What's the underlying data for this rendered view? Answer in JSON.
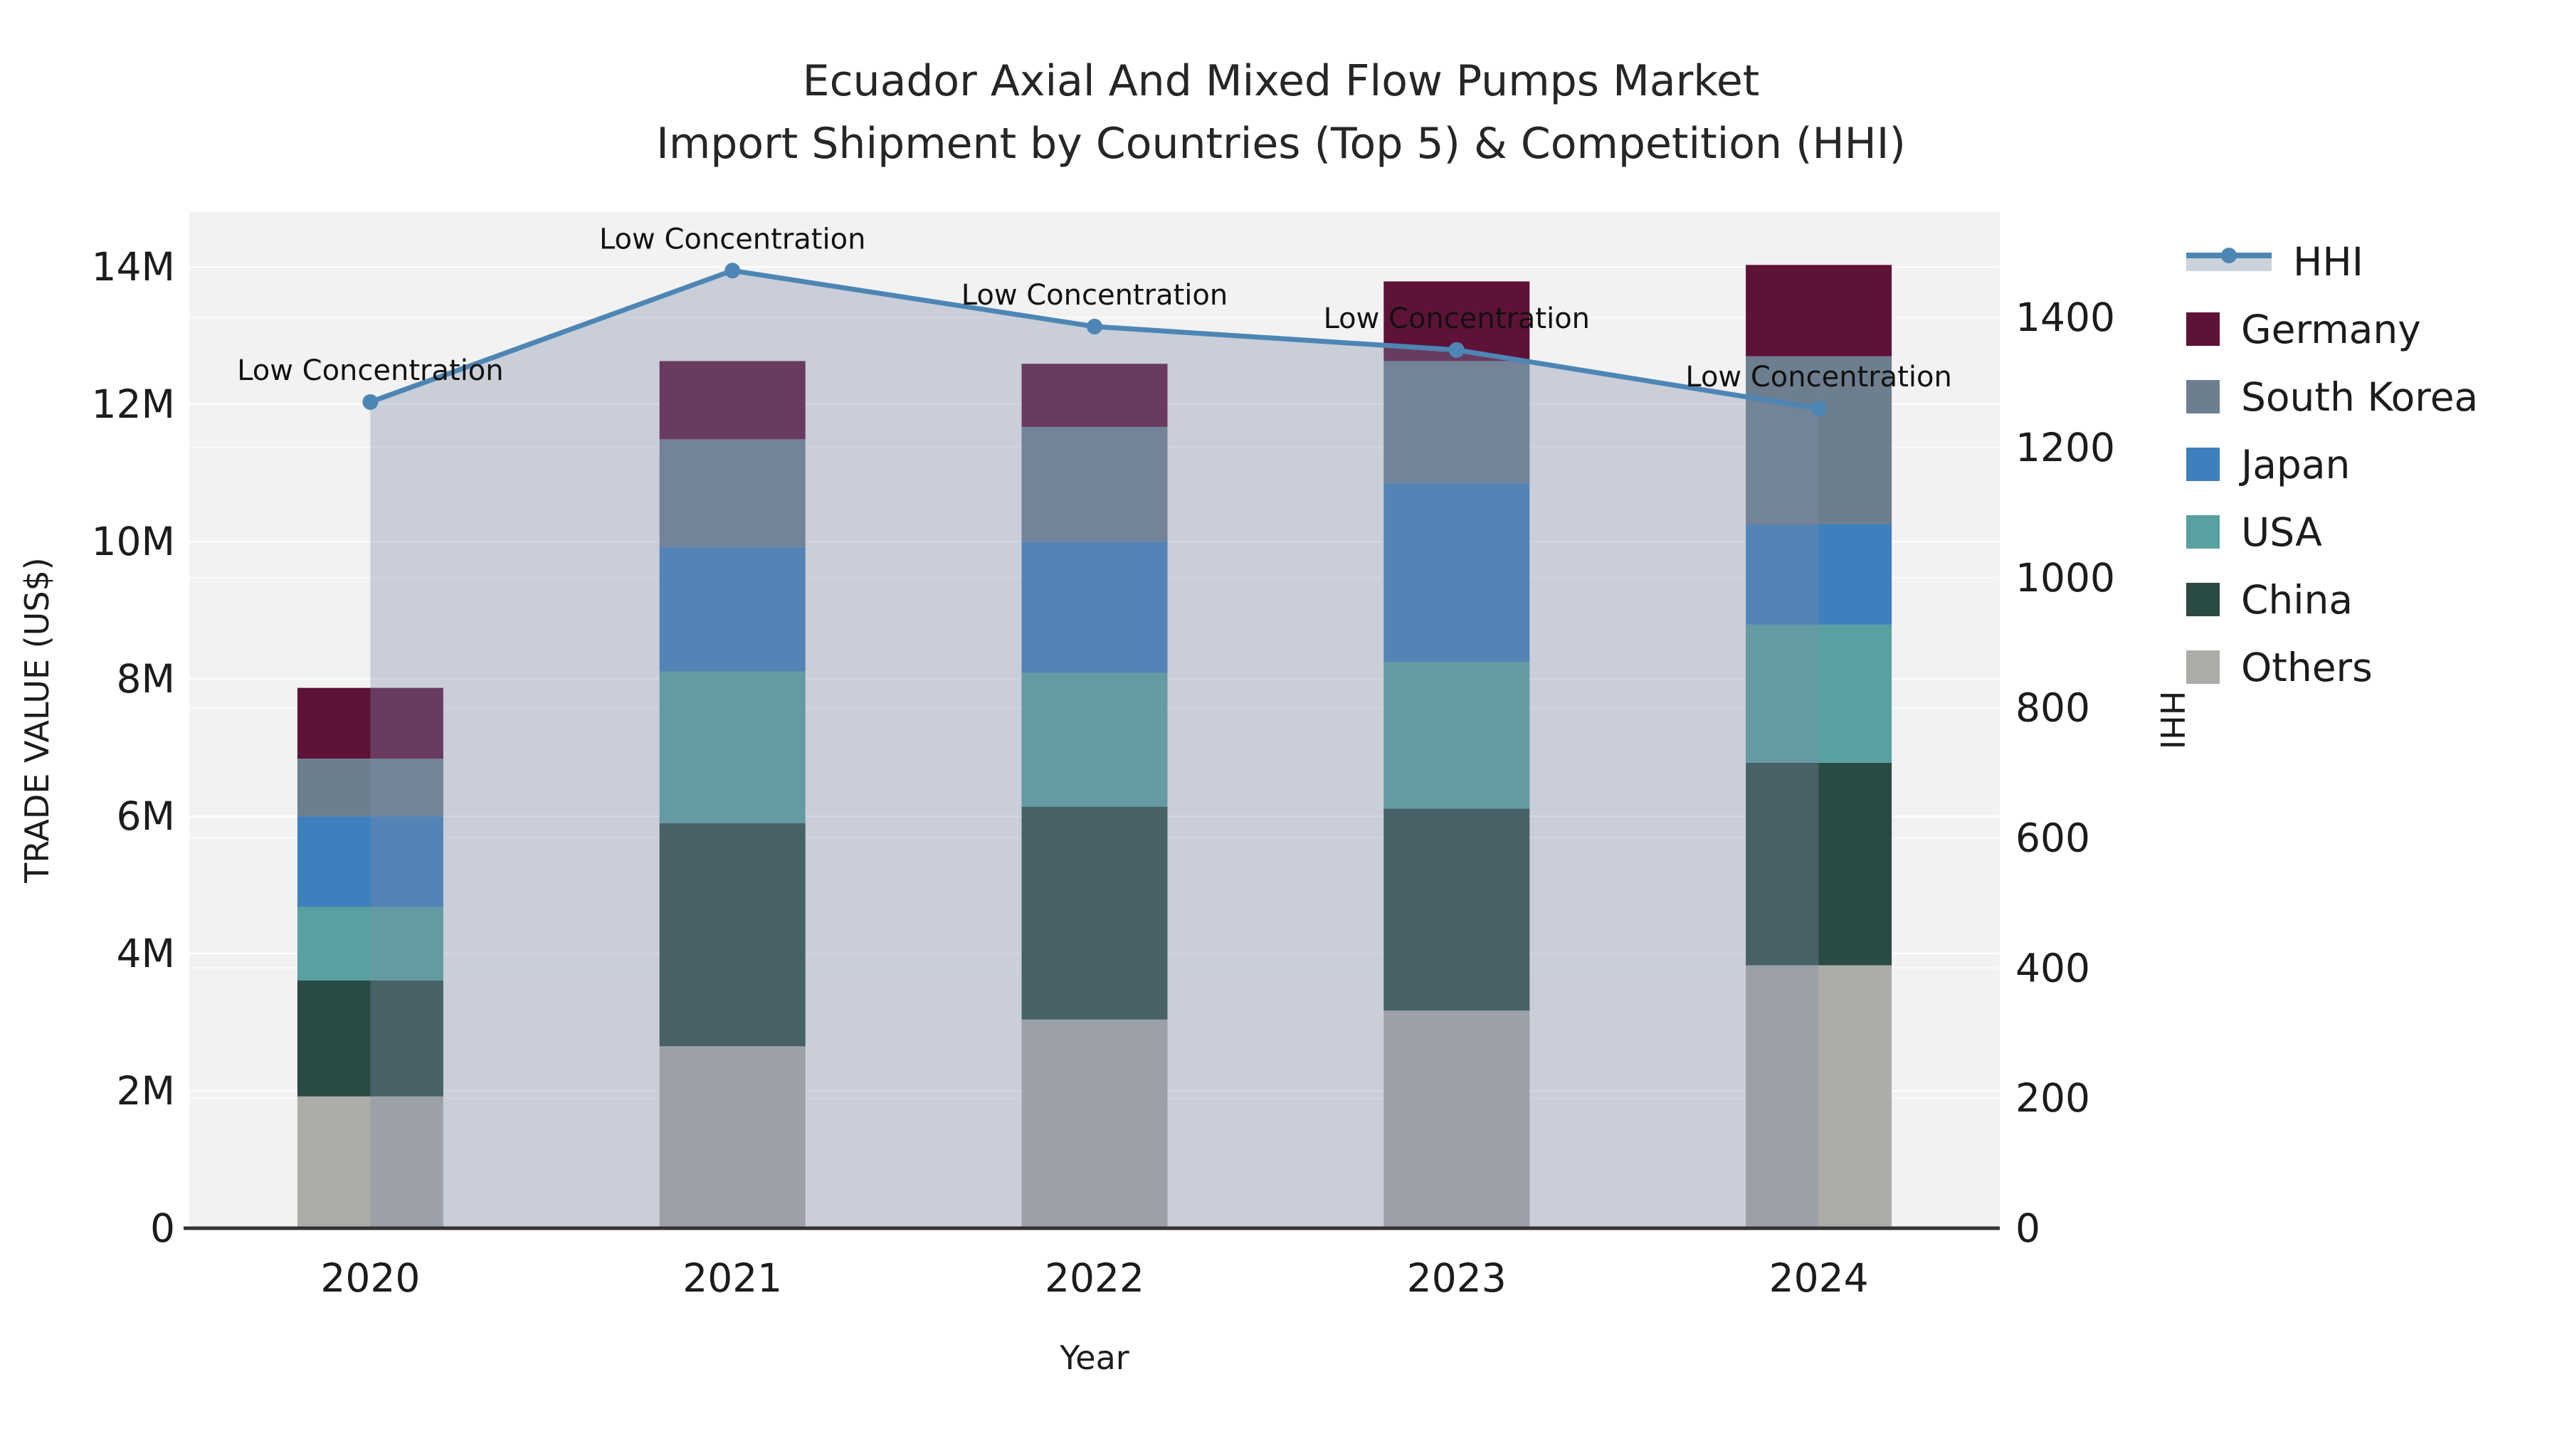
{
  "title": {
    "line1": "Ecuador Axial And Mixed Flow Pumps Market",
    "line2": "Import Shipment by Countries (Top 5) & Competition (HHI)"
  },
  "axes": {
    "x": {
      "title": "Year"
    },
    "y_left": {
      "title": "TRADE VALUE (US$)",
      "ticks": [
        {
          "label": "0",
          "value": 0
        },
        {
          "label": "2M",
          "value": 2
        },
        {
          "label": "4M",
          "value": 4
        },
        {
          "label": "6M",
          "value": 6
        },
        {
          "label": "8M",
          "value": 8
        },
        {
          "label": "10M",
          "value": 10
        },
        {
          "label": "12M",
          "value": 12
        },
        {
          "label": "14M",
          "value": 14
        }
      ],
      "max": 14.8
    },
    "y_right": {
      "title": "HHI",
      "ticks": [
        {
          "label": "0",
          "value": 0
        },
        {
          "label": "200",
          "value": 200
        },
        {
          "label": "400",
          "value": 400
        },
        {
          "label": "600",
          "value": 600
        },
        {
          "label": "800",
          "value": 800
        },
        {
          "label": "1000",
          "value": 1000
        },
        {
          "label": "1200",
          "value": 1200
        },
        {
          "label": "1400",
          "value": 1400
        }
      ],
      "max": 1562
    }
  },
  "legend": [
    {
      "label": "HHI",
      "type": "line",
      "color": "#4d86b5"
    },
    {
      "label": "Germany",
      "type": "patch",
      "color": "#5e1238"
    },
    {
      "label": "South Korea",
      "type": "patch",
      "color": "#6d7f8f"
    },
    {
      "label": "Japan",
      "type": "patch",
      "color": "#3e7fbe"
    },
    {
      "label": "USA",
      "type": "patch",
      "color": "#58a1a0"
    },
    {
      "label": "China",
      "type": "patch",
      "color": "#2a4a44"
    },
    {
      "label": "Others",
      "type": "patch",
      "color": "#acaca9"
    }
  ],
  "chart_data": {
    "type": "bar+line",
    "title": "Ecuador Axial And Mixed Flow Pumps Market — Import Shipment by Countries (Top 5) & Competition (HHI)",
    "xlabel": "Year",
    "ylabel_left": "TRADE VALUE (US$)",
    "ylabel_right": "HHI",
    "categories": [
      "2020",
      "2021",
      "2022",
      "2023",
      "2024"
    ],
    "unit": "million US$",
    "stack_order_bottom_to_top": [
      "Others",
      "China",
      "USA",
      "Japan",
      "South Korea",
      "Germany"
    ],
    "series": [
      {
        "name": "Others",
        "color": "#acaca9",
        "values": [
          1.92,
          2.65,
          3.04,
          3.17,
          3.83
        ]
      },
      {
        "name": "China",
        "color": "#2a4a44",
        "values": [
          1.69,
          3.25,
          3.1,
          2.94,
          2.95
        ]
      },
      {
        "name": "USA",
        "color": "#58a1a0",
        "values": [
          1.07,
          2.21,
          1.95,
          2.14,
          2.01
        ]
      },
      {
        "name": "Japan",
        "color": "#3e7fbe",
        "values": [
          1.32,
          1.81,
          1.91,
          2.61,
          1.46
        ]
      },
      {
        "name": "South Korea",
        "color": "#6d7f8f",
        "values": [
          0.84,
          1.57,
          1.67,
          1.77,
          2.45
        ]
      },
      {
        "name": "Germany",
        "color": "#5e1238",
        "values": [
          1.03,
          1.14,
          0.92,
          1.16,
          1.33
        ]
      }
    ],
    "bar_totals": [
      7.87,
      12.63,
      12.59,
      13.79,
      14.03
    ],
    "line": {
      "name": "HHI",
      "values": [
        1270,
        1472,
        1386,
        1350,
        1260
      ],
      "color": "#4d86b5",
      "area_color": "#7d8caa",
      "area_opacity": 0.35,
      "point_annotation": "Low Concentration"
    },
    "ylim_left": [
      0,
      14.8
    ],
    "ylim_right": [
      0,
      1562
    ],
    "grid": true,
    "legend_position": "right"
  },
  "style": {
    "plot_bg": "#f2f2f2",
    "grid_color": "#ffffff",
    "spine_color": "#333333",
    "tick_color": "#1c1c1c",
    "annotation_color": "#111111"
  }
}
